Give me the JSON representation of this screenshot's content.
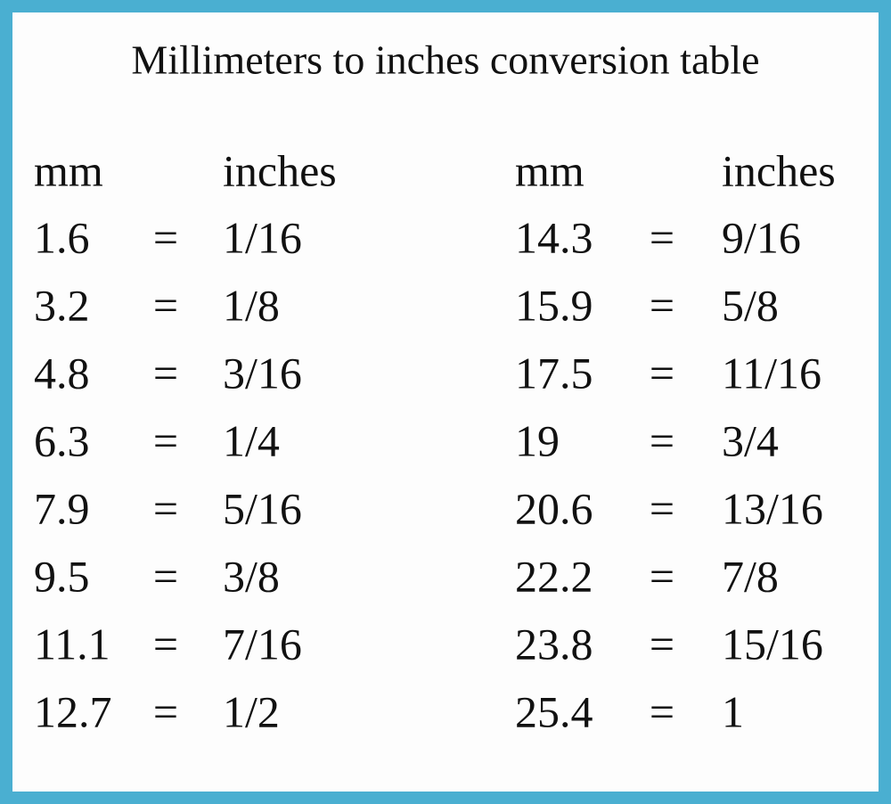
{
  "title": "Millimeters to inches conversion table",
  "tables": [
    {
      "header": [
        "mm",
        "inches"
      ],
      "rows": [
        [
          "1.6",
          "=",
          "1/16"
        ],
        [
          "3.2",
          "=",
          "1/8"
        ],
        [
          "4.8",
          "=",
          "3/16"
        ],
        [
          "6.3",
          "=",
          "1/4"
        ],
        [
          "7.9",
          "=",
          "5/16"
        ],
        [
          "9.5",
          "=",
          "3/8"
        ],
        [
          "11.1",
          "=",
          "7/16"
        ],
        [
          "12.7",
          "=",
          "1/2"
        ]
      ]
    },
    {
      "header": [
        "mm",
        "inches"
      ],
      "rows": [
        [
          "14.3",
          "=",
          "9/16"
        ],
        [
          "15.9",
          "=",
          "5/8"
        ],
        [
          "17.5",
          "=",
          "11/16"
        ],
        [
          "19",
          "=",
          "3/4"
        ],
        [
          "20.6",
          "=",
          "13/16"
        ],
        [
          "22.2",
          "=",
          "7/8"
        ],
        [
          "23.8",
          "=",
          "15/16"
        ],
        [
          "25.4",
          "=",
          "1"
        ]
      ]
    }
  ]
}
